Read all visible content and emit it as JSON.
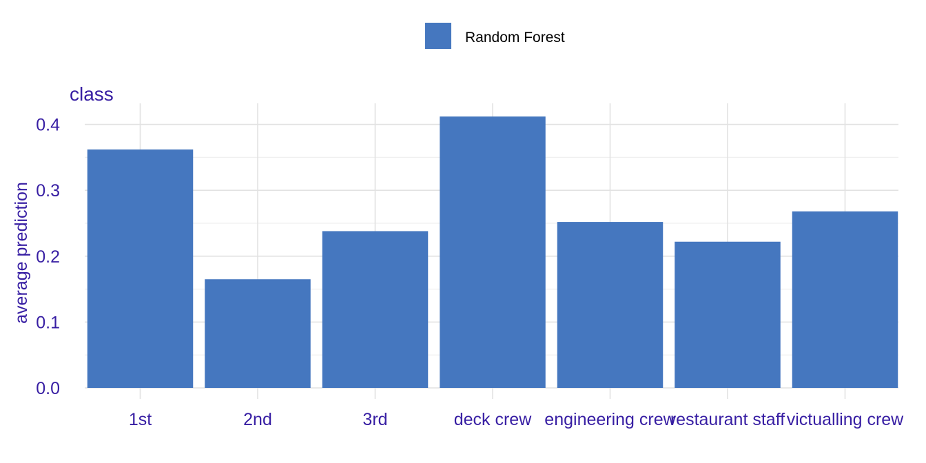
{
  "chart_data": {
    "type": "bar",
    "title": "class",
    "xlabel": "",
    "ylabel": "average prediction",
    "categories": [
      "1st",
      "2nd",
      "3rd",
      "deck crew",
      "engineering crew",
      "restaurant staff",
      "victualling crew"
    ],
    "series": [
      {
        "name": "Random Forest",
        "color": "#4577bf",
        "values": [
          0.362,
          0.165,
          0.238,
          0.412,
          0.252,
          0.222,
          0.268
        ]
      }
    ],
    "ylim": [
      0,
      0.43
    ],
    "yticks": [
      0.0,
      0.1,
      0.2,
      0.3,
      0.4
    ],
    "ytick_labels": [
      "0.0",
      "0.1",
      "0.2",
      "0.3",
      "0.4"
    ],
    "grid": true,
    "legend_position": "top",
    "text_color": "#371ea3"
  }
}
